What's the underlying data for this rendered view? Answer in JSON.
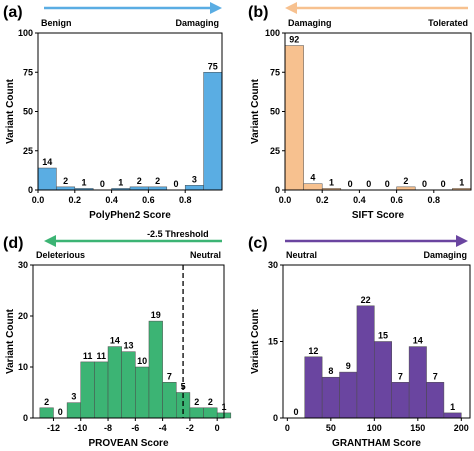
{
  "colors": {
    "panel_a": "#5aade3",
    "panel_b": "#f7c18f",
    "panel_c": "#6a45a0",
    "panel_d": "#3cb474"
  },
  "chart_data": [
    {
      "id": "a",
      "type": "bar",
      "panel_label": "(a)",
      "title": "",
      "xlabel": "PolyPhen2 Score",
      "ylabel": "Variant Count",
      "x": [
        0.0,
        0.1,
        0.2,
        0.3,
        0.4,
        0.5,
        0.6,
        0.7,
        0.8,
        0.9
      ],
      "values": [
        14,
        2,
        1,
        0,
        1,
        2,
        2,
        0,
        3,
        75
      ],
      "bin_width": 0.1,
      "xlim": [
        0.0,
        1.0
      ],
      "ylim": [
        0,
        100
      ],
      "xticks": [
        0.0,
        0.2,
        0.4,
        0.6,
        0.8
      ],
      "xtick_labels": [
        "0.0",
        "0.2",
        "0.4",
        "0.6",
        "0.8"
      ],
      "yticks": [
        0,
        25,
        50,
        75,
        100
      ],
      "ytick_labels": [
        "0",
        "25",
        "50",
        "75",
        "100"
      ],
      "arrow": {
        "direction": "right",
        "left_label": "Benign",
        "right_label": "Damaging"
      },
      "threshold": null
    },
    {
      "id": "b",
      "type": "bar",
      "panel_label": "(b)",
      "title": "",
      "xlabel": "SIFT Score",
      "ylabel": "Variant Count",
      "x": [
        0.0,
        0.1,
        0.2,
        0.3,
        0.4,
        0.5,
        0.6,
        0.7,
        0.8,
        0.9
      ],
      "values": [
        92,
        4,
        1,
        0,
        0,
        0,
        2,
        0,
        0,
        1
      ],
      "bin_width": 0.1,
      "xlim": [
        0.0,
        1.0
      ],
      "ylim": [
        0,
        100
      ],
      "xticks": [
        0.0,
        0.2,
        0.4,
        0.6,
        0.8
      ],
      "xtick_labels": [
        "0.0",
        "0.2",
        "0.4",
        "0.6",
        "0.8"
      ],
      "yticks": [
        0,
        25,
        50,
        75,
        100
      ],
      "ytick_labels": [
        "0",
        "25",
        "50",
        "75",
        "100"
      ],
      "arrow": {
        "direction": "left",
        "left_label": "Damaging",
        "right_label": "Tolerated"
      },
      "threshold": null
    },
    {
      "id": "d",
      "type": "bar",
      "panel_label": "(d)",
      "title": "",
      "xlabel": "PROVEAN Score",
      "ylabel": "Variant Count",
      "x": [
        -13,
        -12,
        -11,
        -10,
        -9,
        -8,
        -7,
        -6,
        -5,
        -4,
        -3,
        -2,
        -1,
        0
      ],
      "values": [
        2,
        0,
        3,
        11,
        11,
        14,
        13,
        10,
        19,
        7,
        5,
        2,
        2,
        1
      ],
      "bin_width": 1,
      "xlim": [
        -13.5,
        0.5
      ],
      "ylim": [
        0,
        30
      ],
      "xticks": [
        -12,
        -10,
        -8,
        -6,
        -4,
        -2,
        0
      ],
      "xtick_labels": [
        "-12",
        "-10",
        "-8",
        "-6",
        "-4",
        "-2",
        "0"
      ],
      "yticks": [
        0,
        10,
        20,
        30
      ],
      "ytick_labels": [
        "0",
        "10",
        "20",
        "30"
      ],
      "arrow": {
        "direction": "left",
        "left_label": "Deleterious",
        "right_label": "Neutral"
      },
      "threshold": {
        "x": -2.5,
        "label": "-2.5 Threshold"
      }
    },
    {
      "id": "c",
      "type": "bar",
      "panel_label": "(c)",
      "title": "",
      "xlabel": "GRANTHAM Score",
      "ylabel": "Variant Count",
      "x": [
        0,
        20,
        40,
        60,
        80,
        100,
        120,
        140,
        160,
        180
      ],
      "values": [
        0,
        12,
        8,
        9,
        22,
        15,
        7,
        14,
        7,
        1
      ],
      "bin_width": 20,
      "xlim": [
        -5,
        210
      ],
      "ylim": [
        0,
        30
      ],
      "xticks": [
        0,
        50,
        100,
        150,
        200
      ],
      "xtick_labels": [
        "0",
        "50",
        "100",
        "150",
        "200"
      ],
      "yticks": [
        0,
        15,
        30
      ],
      "ytick_labels": [
        "0",
        "15",
        "30"
      ],
      "arrow": {
        "direction": "right",
        "left_label": "Neutral",
        "right_label": "Damaging"
      },
      "threshold": null
    }
  ]
}
